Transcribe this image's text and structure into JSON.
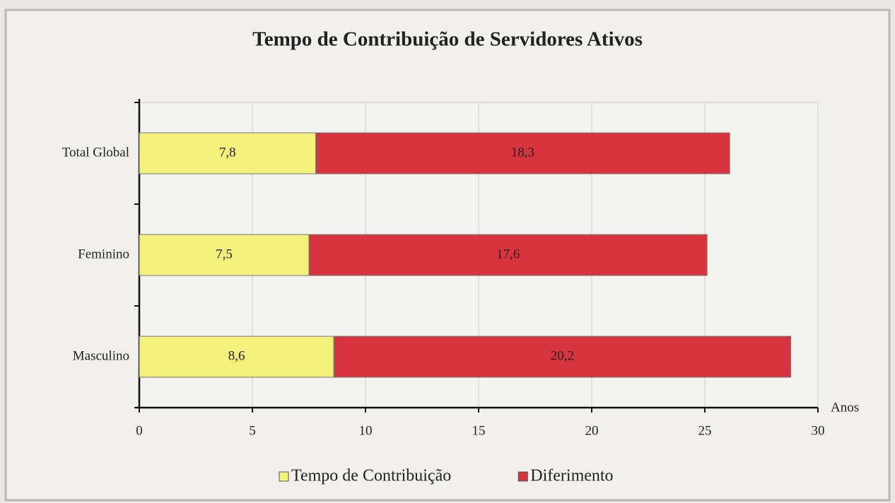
{
  "chart_data": {
    "type": "stacked_barh",
    "title": "Tempo de Contribuição de Servidores Ativos",
    "xlabel": "Anos",
    "categories": [
      "Total Global",
      "Feminino",
      "Masculino"
    ],
    "series": [
      {
        "name": "Tempo de Contribuição",
        "color": "#f3f07c",
        "values": [
          7.8,
          7.5,
          8.6
        ],
        "value_labels": [
          "7,8",
          "7,5",
          "8,6"
        ]
      },
      {
        "name": "Diferimento",
        "color": "#d8343f",
        "values": [
          18.3,
          17.6,
          20.2
        ],
        "value_labels": [
          "18,3",
          "17,6",
          "20,2"
        ]
      }
    ],
    "xlim": [
      0,
      30
    ],
    "xticks": [
      0,
      5,
      10,
      15,
      20,
      25,
      30
    ],
    "grid": true,
    "legend": "bottom"
  }
}
